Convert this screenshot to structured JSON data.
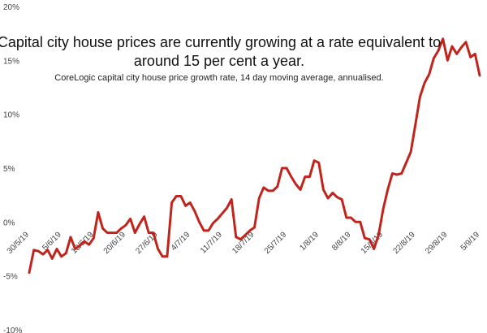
{
  "chart_data": {
    "type": "line",
    "title_lines": [
      "Capital city house prices are currently growing at a rate equivalent to",
      "around 15 per cent a year."
    ],
    "subtitle": "CoreLogic capital city house price growth rate, 14 day moving average, annualised.",
    "y_tick_labels": [
      "20%",
      "15%",
      "10%",
      "5%",
      "0%",
      "-5%",
      "-10%"
    ],
    "y_tick_values": [
      20,
      15,
      10,
      5,
      0,
      -5,
      -10
    ],
    "ylim": [
      -10,
      20
    ],
    "x_tick_labels": [
      "30/5/19",
      "5/6/19",
      "13/6/19",
      "20/6/19",
      "27/6/19",
      "4/7/19",
      "11/7/19",
      "18/7/19",
      "25/7/19",
      "1/8/19",
      "8/8/19",
      "15/8/19",
      "22/8/19",
      "29/8/19",
      "5/9/19"
    ],
    "line_color": "#c0241c",
    "grid": false,
    "legend": "none",
    "series": [
      {
        "values": [
          -4.7,
          -2.6,
          -2.7,
          -3.0,
          -2.6,
          -3.4,
          -2.5,
          -3.2,
          -2.9,
          -1.4,
          -2.5,
          -2.2,
          -1.8,
          -2.1,
          -1.5,
          0.9,
          -0.6,
          -1.0,
          -1.0,
          -1.0,
          -0.6,
          -0.3,
          0.3,
          -1.0,
          -0.2,
          0.5,
          -1.0,
          -1.0,
          -2.5,
          -3.2,
          -3.2,
          1.8,
          2.4,
          2.4,
          1.5,
          1.8,
          1.0,
          0.0,
          -0.8,
          -0.8,
          -0.1,
          0.3,
          0.8,
          1.3,
          2.1,
          -1.4,
          -1.6,
          -1.2,
          -0.8,
          -0.5,
          2.2,
          3.2,
          2.9,
          2.9,
          3.3,
          5.0,
          5.0,
          4.2,
          3.5,
          3.0,
          4.2,
          4.2,
          5.7,
          5.5,
          3.0,
          2.2,
          2.7,
          2.3,
          2.1,
          0.4,
          0.4,
          0.0,
          0.0,
          -1.5,
          -1.6,
          -2.5,
          -1.2,
          1.2,
          3.0,
          4.5,
          4.4,
          4.5,
          5.5,
          6.5,
          9.0,
          11.6,
          12.9,
          13.7,
          15.2,
          15.9,
          17.0,
          15.0,
          16.3,
          15.6,
          16.2,
          16.7,
          15.3,
          15.6,
          13.6
        ]
      }
    ]
  }
}
